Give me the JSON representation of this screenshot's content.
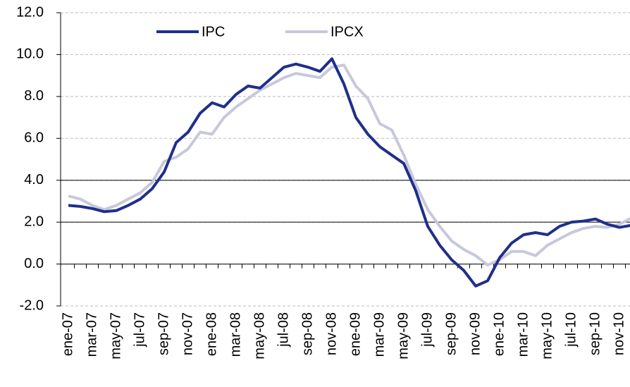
{
  "chart_data": {
    "type": "line",
    "categories": [
      "ene-07",
      null,
      "mar-07",
      null,
      "may-07",
      null,
      "jul-07",
      null,
      "sep-07",
      null,
      "nov-07",
      null,
      "ene-08",
      null,
      "mar-08",
      null,
      "may-08",
      null,
      "jul-08",
      null,
      "sep-08",
      null,
      "nov-08",
      null,
      "ene-09",
      null,
      "mar-09",
      null,
      "may-09",
      null,
      "jul-09",
      null,
      "sep-09",
      null,
      "nov-09",
      null,
      "ene-10",
      null,
      "mar-10",
      null,
      "may-10",
      null,
      "jul-10",
      null,
      "sep-10",
      null,
      "nov-10",
      null
    ],
    "series": [
      {
        "name": "IPC",
        "color": "#1f2f8a",
        "values": [
          2.8,
          2.75,
          2.65,
          2.5,
          2.55,
          2.8,
          3.1,
          3.6,
          4.4,
          5.8,
          6.3,
          7.2,
          7.7,
          7.5,
          8.1,
          8.5,
          8.4,
          8.9,
          9.4,
          9.55,
          9.4,
          9.2,
          9.8,
          8.6,
          7.0,
          6.2,
          5.6,
          5.2,
          4.8,
          3.5,
          1.8,
          0.9,
          0.2,
          -0.3,
          -1.05,
          -0.8,
          0.3,
          1.0,
          1.4,
          1.5,
          1.4,
          1.8,
          2.0,
          2.05,
          2.15,
          1.9,
          1.75,
          1.85
        ]
      },
      {
        "name": "IPCX",
        "color": "#c8c8dc",
        "values": [
          3.25,
          3.1,
          2.8,
          2.6,
          2.8,
          3.1,
          3.4,
          3.9,
          4.9,
          5.1,
          5.5,
          6.3,
          6.2,
          7.0,
          7.5,
          7.9,
          8.3,
          8.6,
          8.9,
          9.1,
          9.0,
          8.9,
          9.4,
          9.5,
          8.5,
          7.9,
          6.7,
          6.4,
          5.2,
          3.8,
          2.6,
          1.8,
          1.1,
          0.7,
          0.4,
          -0.05,
          0.2,
          0.6,
          0.6,
          0.4,
          0.9,
          1.2,
          1.5,
          1.7,
          1.8,
          1.75,
          1.9,
          2.2
        ]
      }
    ],
    "ylim": [
      -2,
      12
    ],
    "yticks": [
      {
        "value": -2,
        "label": "-2.0"
      },
      {
        "value": 0,
        "label": "0.0"
      },
      {
        "value": 2,
        "label": "2.0"
      },
      {
        "value": 4,
        "label": "4.0"
      },
      {
        "value": 6,
        "label": "6.0"
      },
      {
        "value": 8,
        "label": "8.0"
      },
      {
        "value": 10,
        "label": "10.0"
      },
      {
        "value": 12,
        "label": "12.0"
      }
    ],
    "hlines": [
      4,
      2
    ],
    "grid": true,
    "legend": "top"
  }
}
